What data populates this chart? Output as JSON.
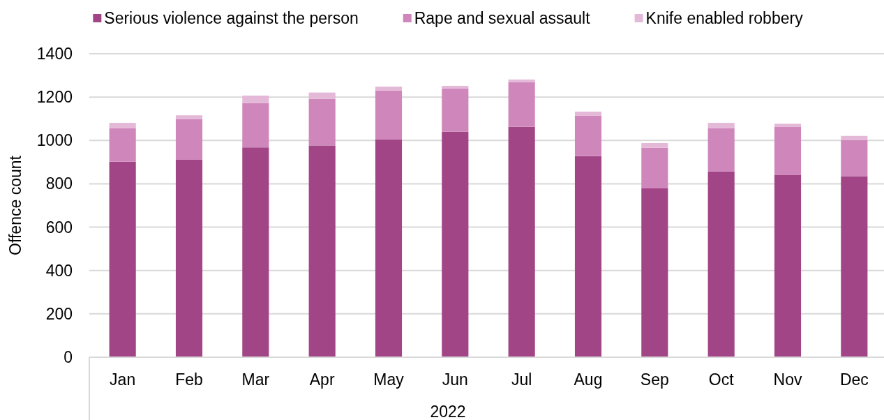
{
  "chart_data": {
    "type": "bar",
    "stacked": true,
    "categories": [
      "Jan",
      "Feb",
      "Mar",
      "Apr",
      "May",
      "Jun",
      "Jul",
      "Aug",
      "Sep",
      "Oct",
      "Nov",
      "Dec"
    ],
    "series": [
      {
        "name": "Serious violence against the person",
        "color": "#a24587",
        "values": [
          902,
          911,
          968,
          977,
          1005,
          1041,
          1063,
          928,
          779,
          857,
          842,
          835
        ]
      },
      {
        "name": "Rape and sexual assault",
        "color": "#cf87bb",
        "values": [
          155,
          188,
          204,
          215,
          225,
          199,
          206,
          186,
          187,
          199,
          220,
          167
        ]
      },
      {
        "name": "Knife enabled robbery",
        "color": "#e4b9d8",
        "values": [
          24,
          17,
          35,
          29,
          18,
          12,
          12,
          19,
          22,
          25,
          15,
          19
        ]
      }
    ],
    "xlabel": "2022",
    "ylabel": "Offence count",
    "ylim": [
      0,
      1400
    ],
    "yticks": [
      0,
      200,
      400,
      600,
      800,
      1000,
      1200,
      1400
    ],
    "grid": "y",
    "legend": "top"
  }
}
